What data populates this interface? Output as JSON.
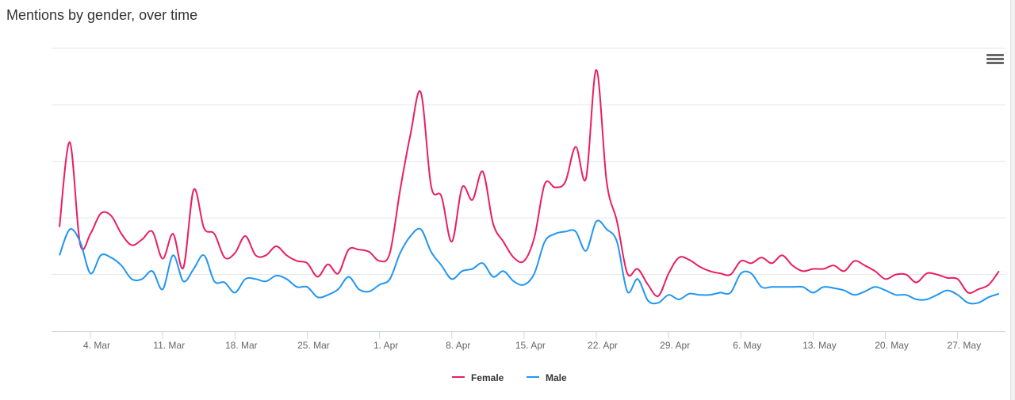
{
  "chart_data": {
    "type": "line",
    "title": "Mentions by gender, over time",
    "xlabel": "",
    "ylabel": "",
    "ylim": [
      0,
      250
    ],
    "y_tick_interval": 50,
    "y_tick_labels_shown": false,
    "grid": true,
    "legend_placement": "bottom-center",
    "x_tick_labels": [
      "4. Mar",
      "11. Mar",
      "18. Mar",
      "25. Mar",
      "1. Apr",
      "8. Apr",
      "15. Apr",
      "22. Apr",
      "29. Apr",
      "6. May",
      "13. May",
      "20. May",
      "27. May"
    ],
    "x": [
      "1 Mar",
      "2 Mar",
      "3 Mar",
      "4 Mar",
      "5 Mar",
      "6 Mar",
      "7 Mar",
      "8 Mar",
      "9 Mar",
      "10 Mar",
      "11 Mar",
      "12 Mar",
      "13 Mar",
      "14 Mar",
      "15 Mar",
      "16 Mar",
      "17 Mar",
      "18 Mar",
      "19 Mar",
      "20 Mar",
      "21 Mar",
      "22 Mar",
      "23 Mar",
      "24 Mar",
      "25 Mar",
      "26 Mar",
      "27 Mar",
      "28 Mar",
      "29 Mar",
      "30 Mar",
      "31 Mar",
      "1 Apr",
      "2 Apr",
      "3 Apr",
      "4 Apr",
      "5 Apr",
      "6 Apr",
      "7 Apr",
      "8 Apr",
      "9 Apr",
      "10 Apr",
      "11 Apr",
      "12 Apr",
      "13 Apr",
      "14 Apr",
      "15 Apr",
      "16 Apr",
      "17 Apr",
      "18 Apr",
      "19 Apr",
      "20 Apr",
      "21 Apr",
      "22 Apr",
      "23 Apr",
      "24 Apr",
      "25 Apr",
      "26 Apr",
      "27 Apr",
      "28 Apr",
      "29 Apr",
      "30 Apr",
      "1 May",
      "2 May",
      "3 May",
      "4 May",
      "5 May",
      "6 May",
      "7 May",
      "8 May",
      "9 May",
      "10 May",
      "11 May",
      "12 May",
      "13 May",
      "14 May",
      "15 May",
      "16 May",
      "17 May",
      "18 May",
      "19 May",
      "20 May",
      "21 May",
      "22 May",
      "23 May",
      "24 May",
      "25 May",
      "26 May",
      "27 May",
      "28 May",
      "29 May",
      "30 May",
      "31 May"
    ],
    "series": [
      {
        "name": "Female",
        "color": "#e91e63",
        "values": [
          92,
          167,
          77,
          86,
          104,
          102,
          86,
          76,
          81,
          88,
          64,
          86,
          56,
          125,
          91,
          86,
          65,
          69,
          84,
          67,
          67,
          75,
          67,
          62,
          60,
          48,
          59,
          51,
          72,
          72,
          70,
          62,
          69,
          125,
          174,
          211,
          128,
          119,
          79,
          127,
          116,
          141,
          95,
          79,
          65,
          62,
          83,
          130,
          127,
          132,
          163,
          135,
          231,
          132,
          97,
          51,
          55,
          41,
          31,
          51,
          65,
          63,
          57,
          53,
          51,
          50,
          62,
          60,
          65,
          60,
          67,
          58,
          53,
          55,
          55,
          58,
          53,
          62,
          58,
          53,
          46,
          50,
          50,
          43,
          51,
          50,
          47,
          46,
          34,
          37,
          41,
          53
        ]
      },
      {
        "name": "Male",
        "color": "#2196f3",
        "values": [
          67,
          90,
          79,
          51,
          67,
          65,
          58,
          46,
          46,
          53,
          37,
          67,
          44,
          55,
          67,
          44,
          43,
          34,
          46,
          46,
          44,
          49,
          46,
          39,
          39,
          30,
          32,
          37,
          48,
          37,
          35,
          41,
          46,
          69,
          84,
          90,
          70,
          58,
          46,
          53,
          55,
          60,
          48,
          53,
          44,
          41,
          51,
          79,
          86,
          88,
          88,
          71,
          97,
          90,
          79,
          35,
          46,
          27,
          25,
          32,
          28,
          33,
          32,
          32,
          34,
          34,
          51,
          51,
          39,
          39,
          39,
          39,
          39,
          34,
          39,
          38,
          36,
          32,
          35,
          39,
          36,
          32,
          32,
          28,
          28,
          32,
          36,
          32,
          25,
          25,
          30,
          33
        ]
      }
    ]
  },
  "menu_icon": "hamburger-menu-icon"
}
